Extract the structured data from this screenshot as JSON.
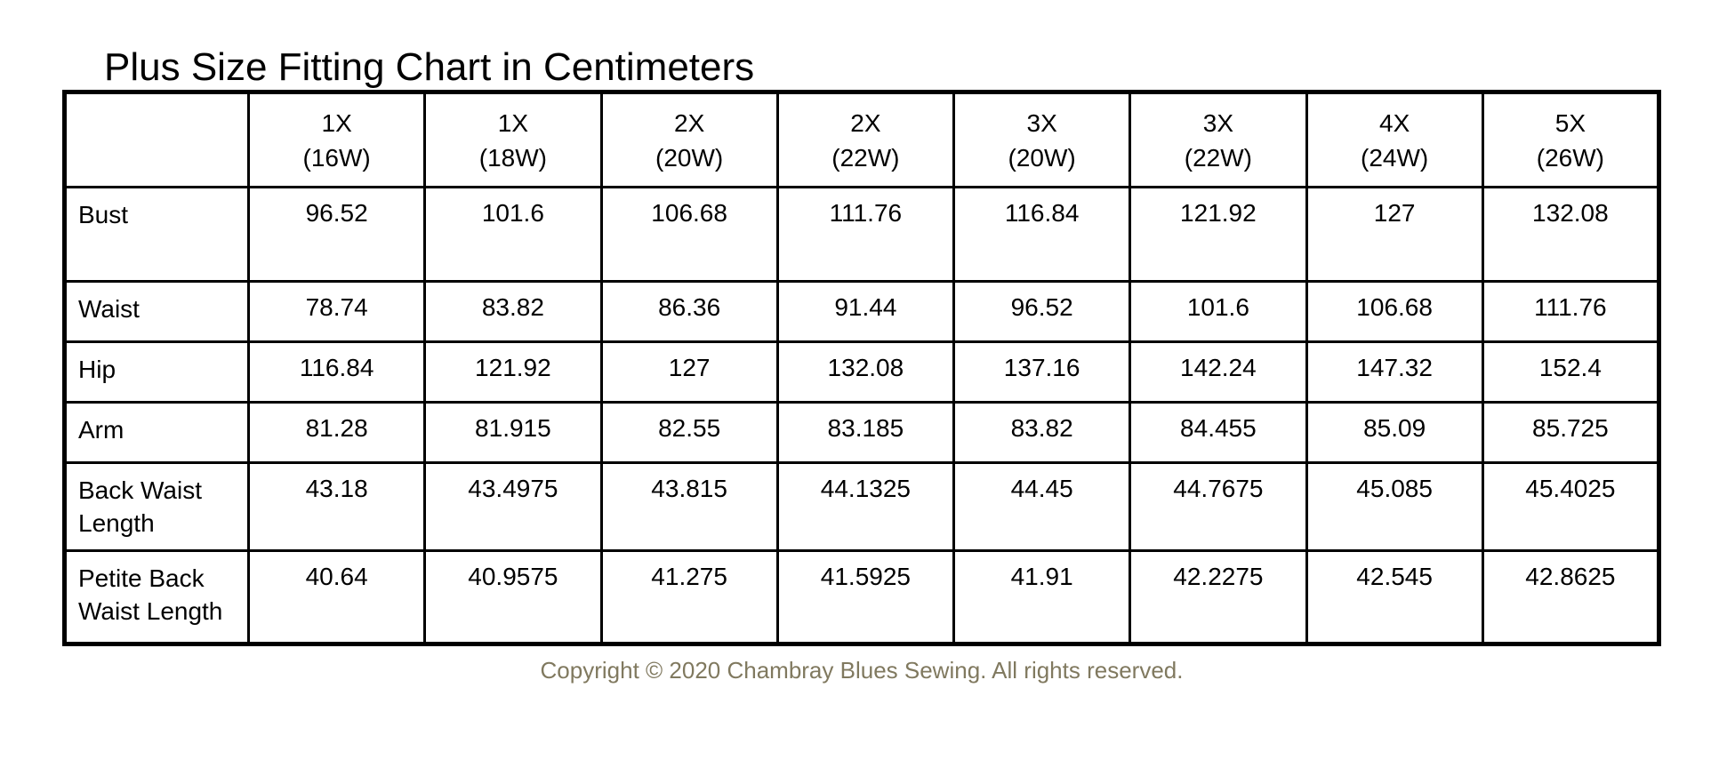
{
  "page": {
    "title": "Plus Size Fitting Chart in Centimeters",
    "footer": "Copyright © 2020 Chambray Blues Sewing. All rights reserved."
  },
  "chart_data": {
    "type": "table",
    "title": "Plus Size Fitting Chart in Centimeters",
    "units": "centimeters",
    "columns": [
      {
        "size": "1X",
        "w_label": "(16W)"
      },
      {
        "size": "1X",
        "w_label": "(18W)"
      },
      {
        "size": "2X",
        "w_label": "(20W)"
      },
      {
        "size": "2X",
        "w_label": "(22W)"
      },
      {
        "size": "3X",
        "w_label": "(20W)"
      },
      {
        "size": "3X",
        "w_label": "(22W)"
      },
      {
        "size": "4X",
        "w_label": "(24W)"
      },
      {
        "size": "5X",
        "w_label": "(26W)"
      }
    ],
    "rows": [
      {
        "label": "Bust",
        "values": [
          96.52,
          101.6,
          106.68,
          111.76,
          116.84,
          121.92,
          127,
          132.08
        ]
      },
      {
        "label": "Waist",
        "values": [
          78.74,
          83.82,
          86.36,
          91.44,
          96.52,
          101.6,
          106.68,
          111.76
        ]
      },
      {
        "label": "Hip",
        "values": [
          116.84,
          121.92,
          127,
          132.08,
          137.16,
          142.24,
          147.32,
          152.4
        ]
      },
      {
        "label": "Arm",
        "values": [
          81.28,
          81.915,
          82.55,
          83.185,
          83.82,
          84.455,
          85.09,
          85.725
        ]
      },
      {
        "label": "Back Waist Length",
        "values": [
          43.18,
          43.4975,
          43.815,
          44.1325,
          44.45,
          44.7675,
          45.085,
          45.4025
        ]
      },
      {
        "label": "Petite Back Waist Length",
        "values": [
          40.64,
          40.9575,
          41.275,
          41.5925,
          41.91,
          42.2275,
          42.545,
          42.8625
        ]
      }
    ],
    "colors": {
      "border": "#000000",
      "text": "#000000",
      "footer_text": "#80795f",
      "background": "#ffffff"
    }
  }
}
